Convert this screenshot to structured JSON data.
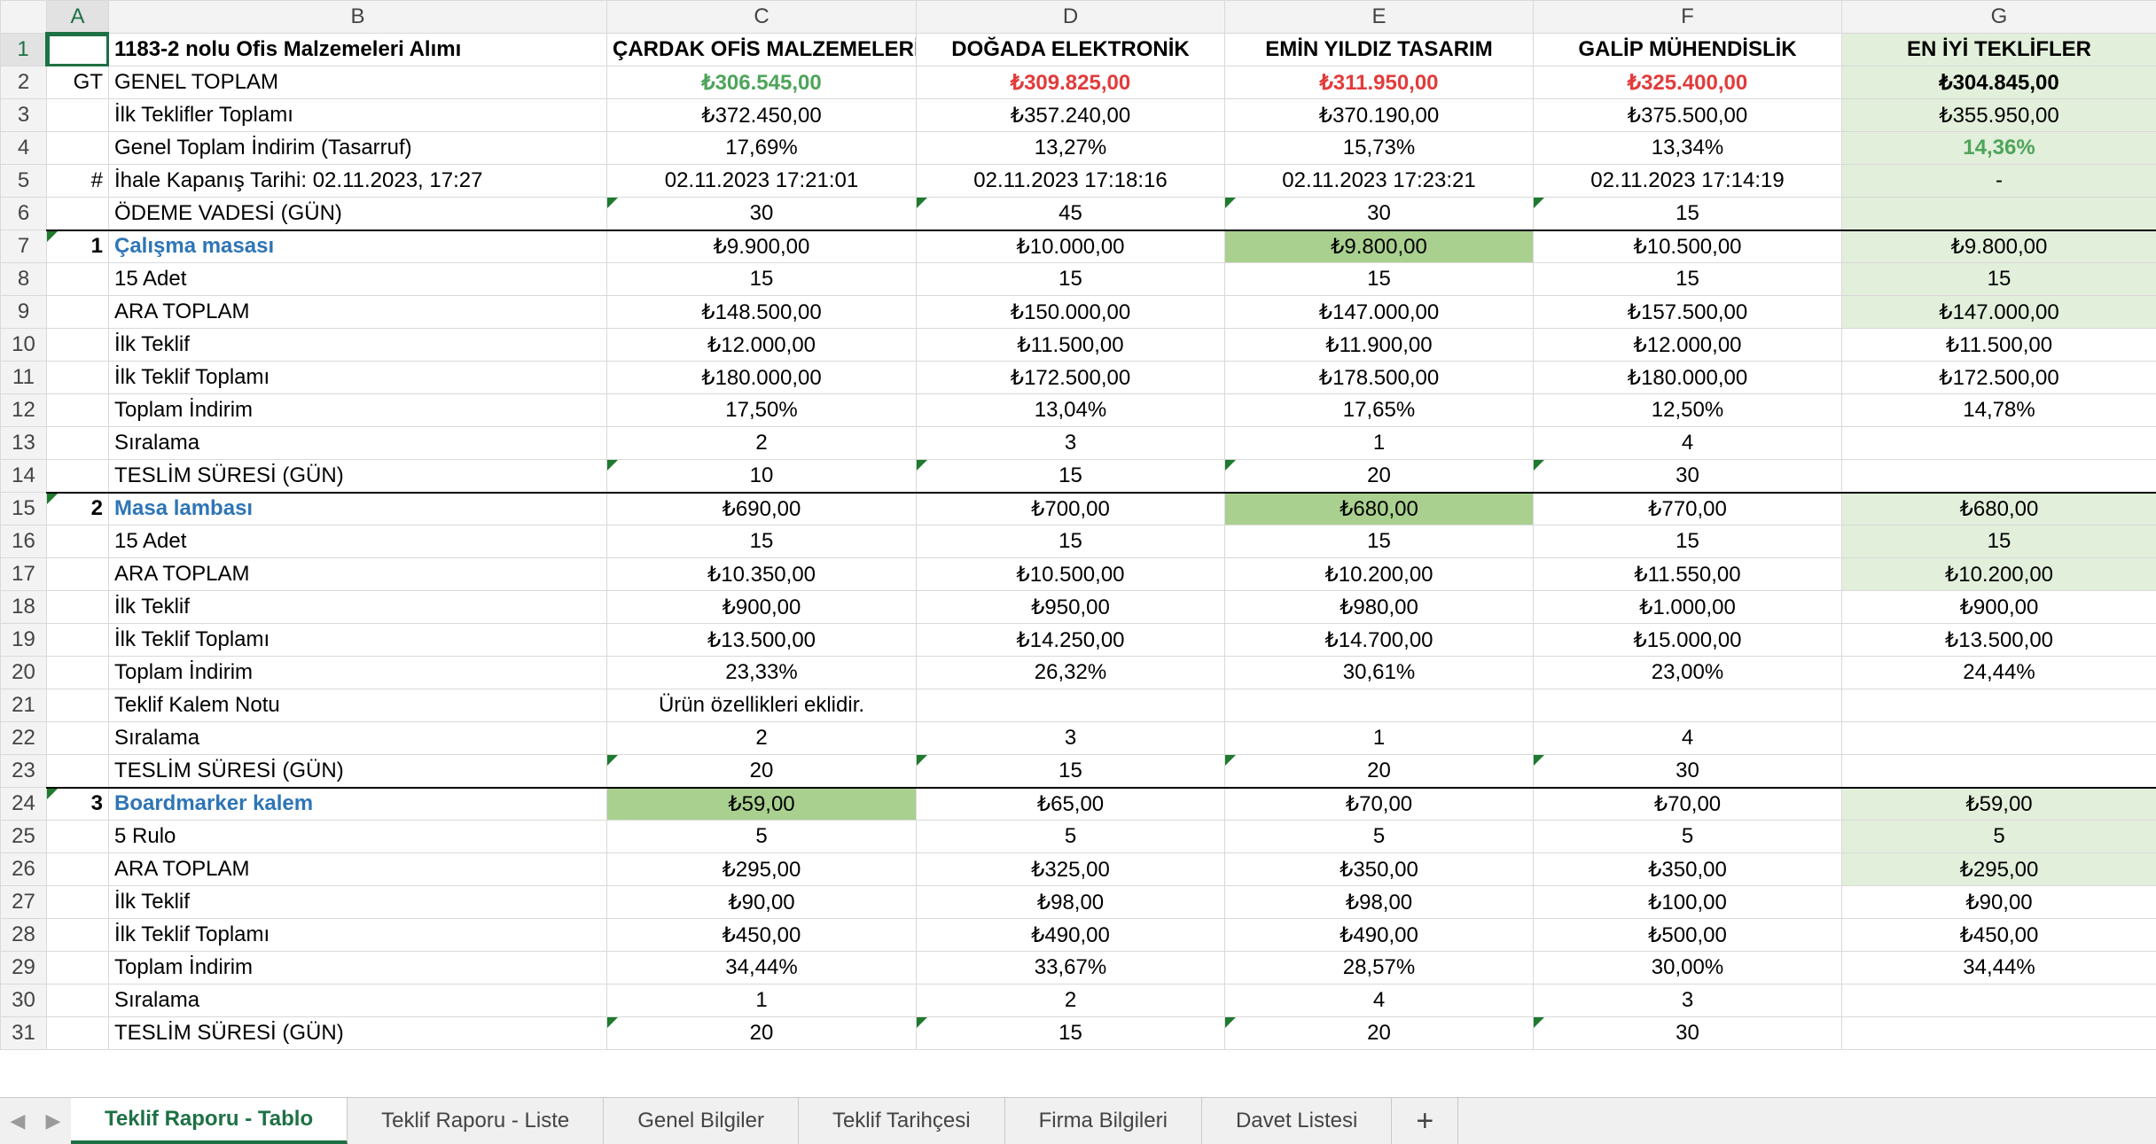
{
  "columns": {
    "a": "A",
    "b": "B",
    "c": "C",
    "d": "D",
    "e": "E",
    "f": "F",
    "g": "G"
  },
  "rows": {
    "r1": {
      "num": "1",
      "b": "1183-2 nolu Ofis Malzemeleri Alımı",
      "c": "ÇARDAK OFİS MALZEMELERİ",
      "d": "DOĞADA ELEKTRONİK",
      "e": "EMİN YILDIZ TASARIM",
      "f": "GALİP MÜHENDİSLİK",
      "g": "EN İYİ TEKLİFLER"
    },
    "r2": {
      "num": "2",
      "a": "GT",
      "b": "GENEL TOPLAM",
      "c": "₺306.545,00",
      "d": "₺309.825,00",
      "e": "₺311.950,00",
      "f": "₺325.400,00",
      "g": "₺304.845,00"
    },
    "r3": {
      "num": "3",
      "b": "İlk Teklifler Toplamı",
      "c": "₺372.450,00",
      "d": "₺357.240,00",
      "e": "₺370.190,00",
      "f": "₺375.500,00",
      "g": "₺355.950,00"
    },
    "r4": {
      "num": "4",
      "b": "Genel Toplam İndirim (Tasarruf)",
      "c": "17,69%",
      "d": "13,27%",
      "e": "15,73%",
      "f": "13,34%",
      "g": "14,36%"
    },
    "r5": {
      "num": "5",
      "a": "#",
      "b": "İhale Kapanış Tarihi: 02.11.2023, 17:27",
      "c": "02.11.2023 17:21:01",
      "d": "02.11.2023 17:18:16",
      "e": "02.11.2023 17:23:21",
      "f": "02.11.2023 17:14:19",
      "g": "-"
    },
    "r6": {
      "num": "6",
      "b": "ÖDEME VADESİ (GÜN)",
      "c": "30",
      "d": "45",
      "e": "30",
      "f": "15",
      "g": ""
    },
    "r7": {
      "num": "7",
      "a": "1",
      "b": "Çalışma masası",
      "c": "₺9.900,00",
      "d": "₺10.000,00",
      "e": "₺9.800,00",
      "f": "₺10.500,00",
      "g": "₺9.800,00"
    },
    "r8": {
      "num": "8",
      "b": "15 Adet",
      "c": "15",
      "d": "15",
      "e": "15",
      "f": "15",
      "g": "15"
    },
    "r9": {
      "num": "9",
      "b": "ARA TOPLAM",
      "c": "₺148.500,00",
      "d": "₺150.000,00",
      "e": "₺147.000,00",
      "f": "₺157.500,00",
      "g": "₺147.000,00"
    },
    "r10": {
      "num": "10",
      "b": "İlk Teklif",
      "c": "₺12.000,00",
      "d": "₺11.500,00",
      "e": "₺11.900,00",
      "f": "₺12.000,00",
      "g": "₺11.500,00"
    },
    "r11": {
      "num": "11",
      "b": "İlk Teklif Toplamı",
      "c": "₺180.000,00",
      "d": "₺172.500,00",
      "e": "₺178.500,00",
      "f": "₺180.000,00",
      "g": "₺172.500,00"
    },
    "r12": {
      "num": "12",
      "b": "Toplam İndirim",
      "c": "17,50%",
      "d": "13,04%",
      "e": "17,65%",
      "f": "12,50%",
      "g": "14,78%"
    },
    "r13": {
      "num": "13",
      "b": "Sıralama",
      "c": "2",
      "d": "3",
      "e": "1",
      "f": "4",
      "g": ""
    },
    "r14": {
      "num": "14",
      "b": "TESLİM SÜRESİ (GÜN)",
      "c": "10",
      "d": "15",
      "e": "20",
      "f": "30",
      "g": ""
    },
    "r15": {
      "num": "15",
      "a": "2",
      "b": "Masa lambası",
      "c": "₺690,00",
      "d": "₺700,00",
      "e": "₺680,00",
      "f": "₺770,00",
      "g": "₺680,00"
    },
    "r16": {
      "num": "16",
      "b": "15 Adet",
      "c": "15",
      "d": "15",
      "e": "15",
      "f": "15",
      "g": "15"
    },
    "r17": {
      "num": "17",
      "b": "ARA TOPLAM",
      "c": "₺10.350,00",
      "d": "₺10.500,00",
      "e": "₺10.200,00",
      "f": "₺11.550,00",
      "g": "₺10.200,00"
    },
    "r18": {
      "num": "18",
      "b": "İlk Teklif",
      "c": "₺900,00",
      "d": "₺950,00",
      "e": "₺980,00",
      "f": "₺1.000,00",
      "g": "₺900,00"
    },
    "r19": {
      "num": "19",
      "b": "İlk Teklif Toplamı",
      "c": "₺13.500,00",
      "d": "₺14.250,00",
      "e": "₺14.700,00",
      "f": "₺15.000,00",
      "g": "₺13.500,00"
    },
    "r20": {
      "num": "20",
      "b": "Toplam İndirim",
      "c": "23,33%",
      "d": "26,32%",
      "e": "30,61%",
      "f": "23,00%",
      "g": "24,44%"
    },
    "r21": {
      "num": "21",
      "b": "Teklif Kalem Notu",
      "c": "Ürün özellikleri eklidir.",
      "d": "",
      "e": "",
      "f": "",
      "g": ""
    },
    "r22": {
      "num": "22",
      "b": "Sıralama",
      "c": "2",
      "d": "3",
      "e": "1",
      "f": "4",
      "g": ""
    },
    "r23": {
      "num": "23",
      "b": "TESLİM SÜRESİ (GÜN)",
      "c": "20",
      "d": "15",
      "e": "20",
      "f": "30",
      "g": ""
    },
    "r24": {
      "num": "24",
      "a": "3",
      "b": "Boardmarker kalem",
      "c": "₺59,00",
      "d": "₺65,00",
      "e": "₺70,00",
      "f": "₺70,00",
      "g": "₺59,00"
    },
    "r25": {
      "num": "25",
      "b": "5 Rulo",
      "c": "5",
      "d": "5",
      "e": "5",
      "f": "5",
      "g": "5"
    },
    "r26": {
      "num": "26",
      "b": "ARA TOPLAM",
      "c": "₺295,00",
      "d": "₺325,00",
      "e": "₺350,00",
      "f": "₺350,00",
      "g": "₺295,00"
    },
    "r27": {
      "num": "27",
      "b": "İlk Teklif",
      "c": "₺90,00",
      "d": "₺98,00",
      "e": "₺98,00",
      "f": "₺100,00",
      "g": "₺90,00"
    },
    "r28": {
      "num": "28",
      "b": "İlk Teklif Toplamı",
      "c": "₺450,00",
      "d": "₺490,00",
      "e": "₺490,00",
      "f": "₺500,00",
      "g": "₺450,00"
    },
    "r29": {
      "num": "29",
      "b": "Toplam İndirim",
      "c": "34,44%",
      "d": "33,67%",
      "e": "28,57%",
      "f": "30,00%",
      "g": "34,44%"
    },
    "r30": {
      "num": "30",
      "b": "Sıralama",
      "c": "1",
      "d": "2",
      "e": "4",
      "f": "3",
      "g": ""
    },
    "r31": {
      "num": "31",
      "b": "TESLİM SÜRESİ (GÜN)",
      "c": "20",
      "d": "15",
      "e": "20",
      "f": "30",
      "g": ""
    }
  },
  "tabs": [
    "Teklif Raporu - Tablo",
    "Teklif Raporu - Liste",
    "Genel Bilgiler",
    "Teklif Tarihçesi",
    "Firma Bilgileri",
    "Davet Listesi"
  ],
  "add_tab": "+",
  "nav": {
    "prev": "◀",
    "next": "▶"
  },
  "colors": {
    "accent": "#1e7145",
    "best_fill": "#e2efda",
    "best_cell": "#a9d08e",
    "good": "#4ea45a",
    "bad": "#e23b3b",
    "item": "#2e75b6"
  }
}
